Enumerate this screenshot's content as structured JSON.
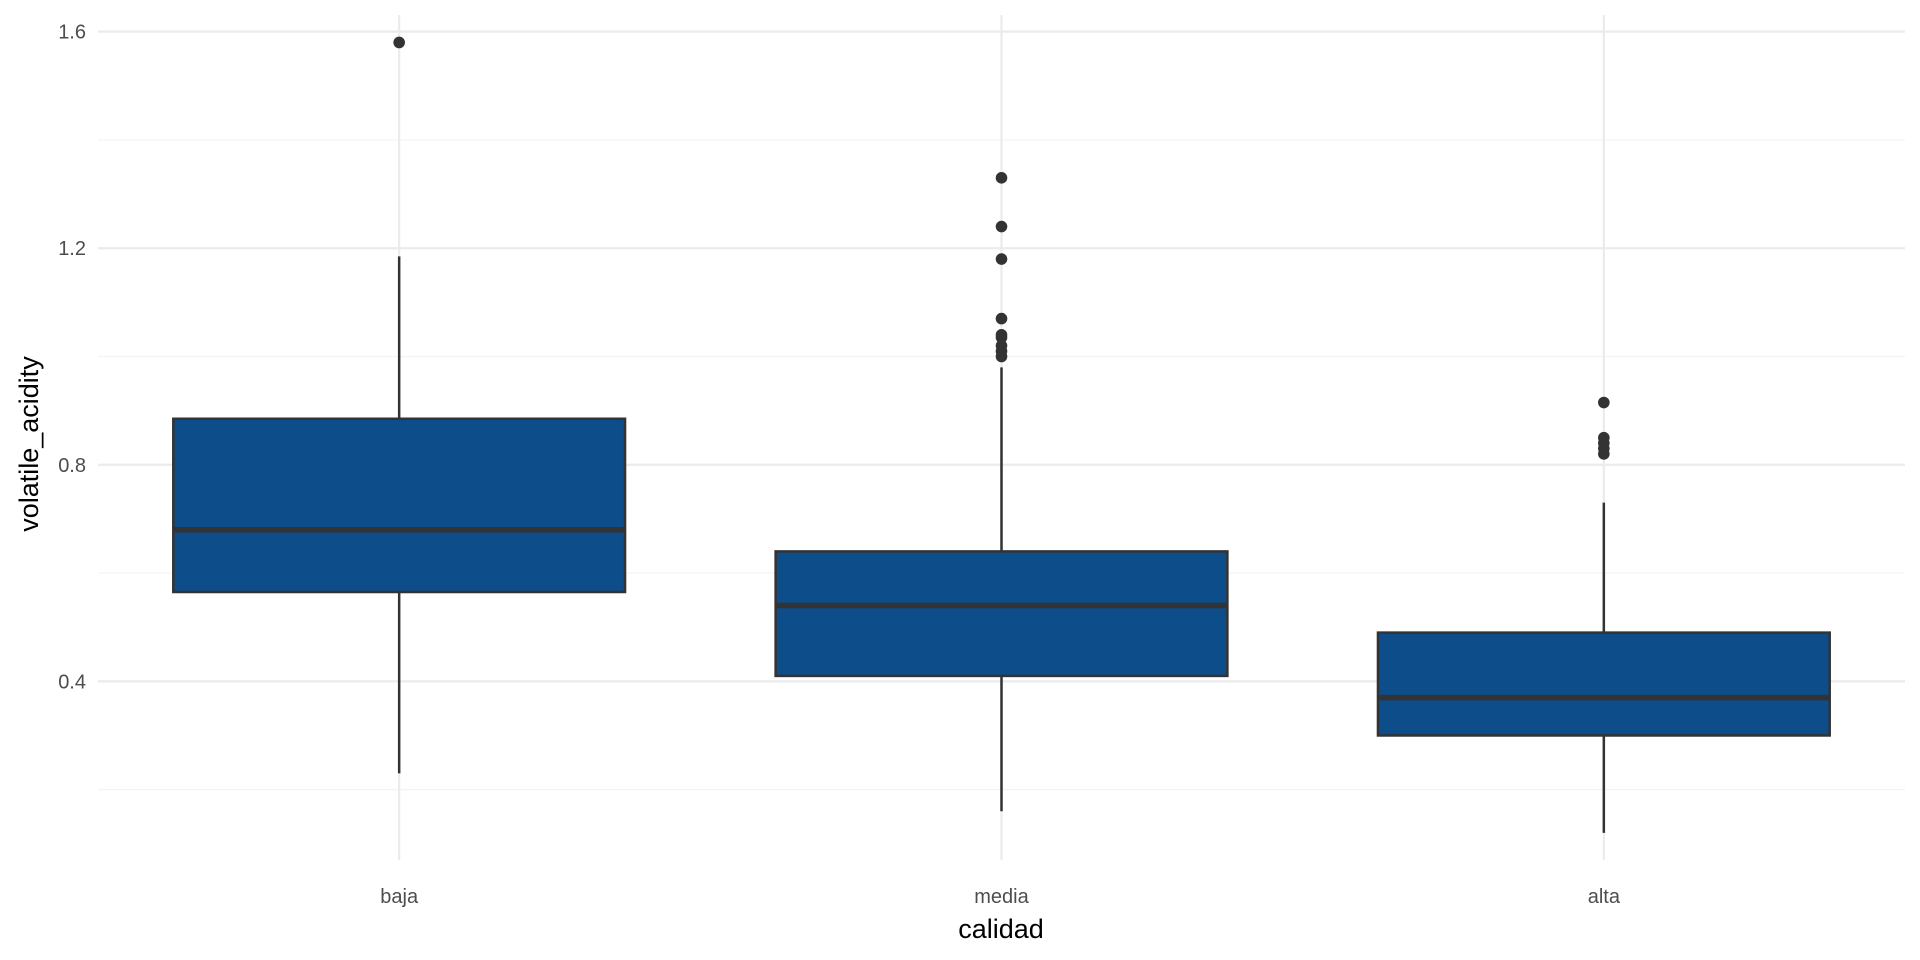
{
  "chart_data": {
    "type": "boxplot",
    "title": "",
    "xlabel": "calidad",
    "ylabel": "volatile_acidity",
    "categories": [
      "baja",
      "media",
      "alta"
    ],
    "boxes": [
      {
        "category": "baja",
        "whisker_low": 0.23,
        "q1": 0.565,
        "median": 0.68,
        "q3": 0.885,
        "whisker_high": 1.185,
        "outliers": [
          1.58
        ]
      },
      {
        "category": "media",
        "whisker_low": 0.16,
        "q1": 0.41,
        "median": 0.54,
        "q3": 0.64,
        "whisker_high": 0.98,
        "outliers": [
          1.33,
          1.24,
          1.18,
          1.07,
          1.04,
          1.035,
          1.02,
          1.01,
          1.0
        ]
      },
      {
        "category": "alta",
        "whisker_low": 0.12,
        "q1": 0.3,
        "median": 0.37,
        "q3": 0.49,
        "whisker_high": 0.73,
        "outliers": [
          0.915,
          0.85,
          0.84,
          0.83,
          0.82
        ]
      }
    ],
    "y_ticks": [
      0.4,
      0.8,
      1.2,
      1.6
    ],
    "y_tick_labels": [
      "0.4",
      "0.8",
      "1.2",
      "1.6"
    ],
    "ylim": [
      0.07,
      1.64
    ],
    "grid": true,
    "legend": "none",
    "colors": {
      "box_fill": "#0d4d8a",
      "box_stroke": "#333333",
      "grid_major": "#ebebeb",
      "grid_minor": "#f3f3f3",
      "background": "#ffffff"
    }
  }
}
